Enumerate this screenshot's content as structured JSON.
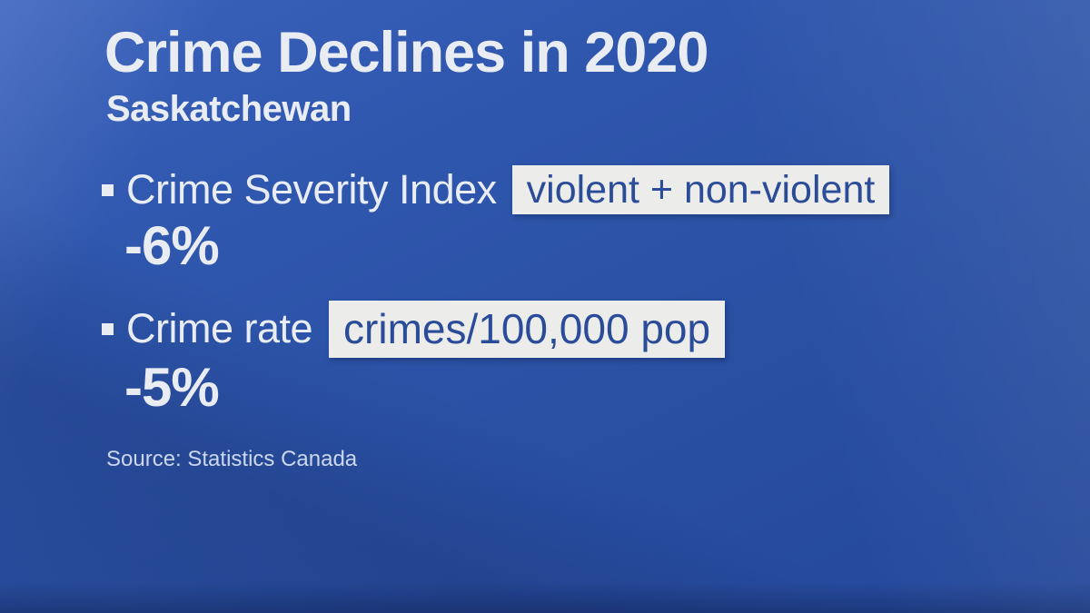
{
  "slide": {
    "title": "Crime Declines in 2020",
    "subtitle": "Saskatchewan",
    "items": [
      {
        "label": "Crime Severity Index",
        "tag": "violent + non-violent",
        "value": "-6%"
      },
      {
        "label": "Crime rate",
        "tag": "crimes/100,000 pop",
        "value": "-5%"
      }
    ],
    "source": "Source: Statistics Canada",
    "colors": {
      "background_top": "#3B63BD",
      "background_bottom": "#24489A",
      "text": "#E9EDF3",
      "tag_background": "#ECEDEA",
      "tag_text": "#2B4C99"
    }
  }
}
